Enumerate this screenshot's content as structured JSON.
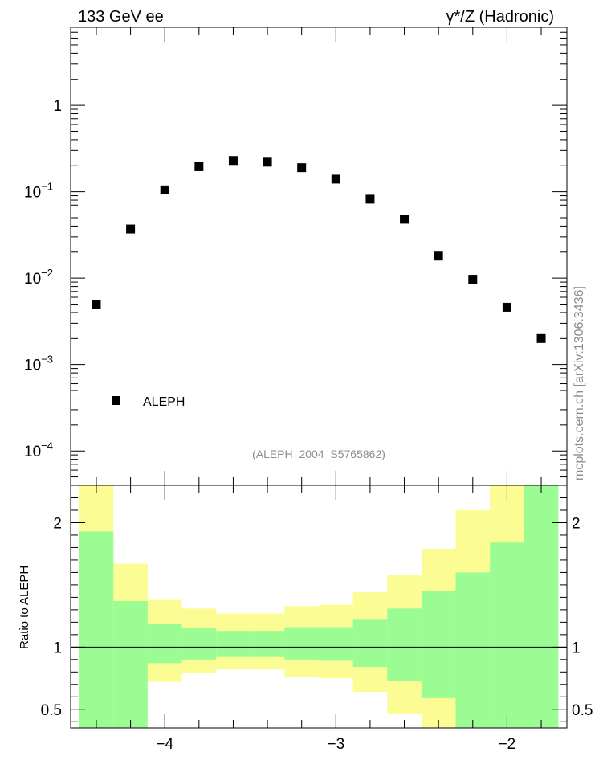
{
  "header": {
    "left": "133 GeV ee",
    "right": "γ*/Z (Hadronic)"
  },
  "side_label": "mcplots.cern.ch [arXiv:1306.3436]",
  "analysis_tag": "(ALEPH_2004_S5765862)",
  "chart_data": [
    {
      "type": "scatter",
      "panel": "main",
      "y_scale": "log",
      "xlim": [
        -4.55,
        -1.65
      ],
      "ylim": [
        4e-05,
        8
      ],
      "y_tick_labels": [
        {
          "value": 1,
          "mantissa": "1",
          "exp": ""
        },
        {
          "value": 0.1,
          "mantissa": "10",
          "exp": "−1"
        },
        {
          "value": 0.01,
          "mantissa": "10",
          "exp": "−2"
        },
        {
          "value": 0.001,
          "mantissa": "10",
          "exp": "−3"
        },
        {
          "value": 0.0001,
          "mantissa": "10",
          "exp": "−4"
        }
      ],
      "legend": {
        "position": "bottom-left",
        "entries": [
          "ALEPH"
        ]
      },
      "series": [
        {
          "name": "ALEPH",
          "color": "#000000",
          "x": [
            -4.4,
            -4.2,
            -4.0,
            -3.8,
            -3.6,
            -3.4,
            -3.2,
            -3.0,
            -2.8,
            -2.6,
            -2.4,
            -2.2,
            -2.0,
            -1.8
          ],
          "y": [
            0.005,
            0.037,
            0.105,
            0.195,
            0.23,
            0.22,
            0.19,
            0.14,
            0.082,
            0.048,
            0.018,
            0.0097,
            0.0046,
            0.002
          ]
        }
      ]
    },
    {
      "type": "area",
      "panel": "ratio",
      "ylabel": "Ratio to ALEPH",
      "xlim": [
        -4.55,
        -1.65
      ],
      "ylim": [
        0.35,
        2.3
      ],
      "x_tick_labels": [
        -4,
        -3,
        -2
      ],
      "y_tick_labels": [
        0.5,
        1,
        2
      ],
      "reference_line": 1,
      "bands": {
        "bin_edges": [
          -4.5,
          -4.3,
          -4.1,
          -3.9,
          -3.7,
          -3.5,
          -3.3,
          -3.1,
          -2.9,
          -2.7,
          -2.5,
          -2.3,
          -2.1,
          -1.9,
          -1.7
        ],
        "stat_color": "#9cfc94",
        "total_color": "#fcfc94",
        "stat_upper": [
          1.93,
          1.37,
          1.19,
          1.15,
          1.13,
          1.13,
          1.16,
          1.16,
          1.22,
          1.31,
          1.45,
          1.6,
          1.84,
          2.4
        ],
        "stat_lower": [
          0.3,
          0.3,
          0.87,
          0.9,
          0.92,
          0.92,
          0.9,
          0.89,
          0.84,
          0.73,
          0.59,
          0.3,
          0.3,
          0.3
        ],
        "total_upper": [
          2.4,
          1.67,
          1.38,
          1.31,
          1.27,
          1.27,
          1.33,
          1.34,
          1.44,
          1.58,
          1.79,
          2.1,
          2.4,
          2.4
        ],
        "total_lower": [
          0.3,
          0.73,
          0.72,
          0.79,
          0.82,
          0.82,
          0.76,
          0.75,
          0.64,
          0.46,
          0.35,
          0.3,
          0.3,
          0.3
        ]
      }
    }
  ]
}
